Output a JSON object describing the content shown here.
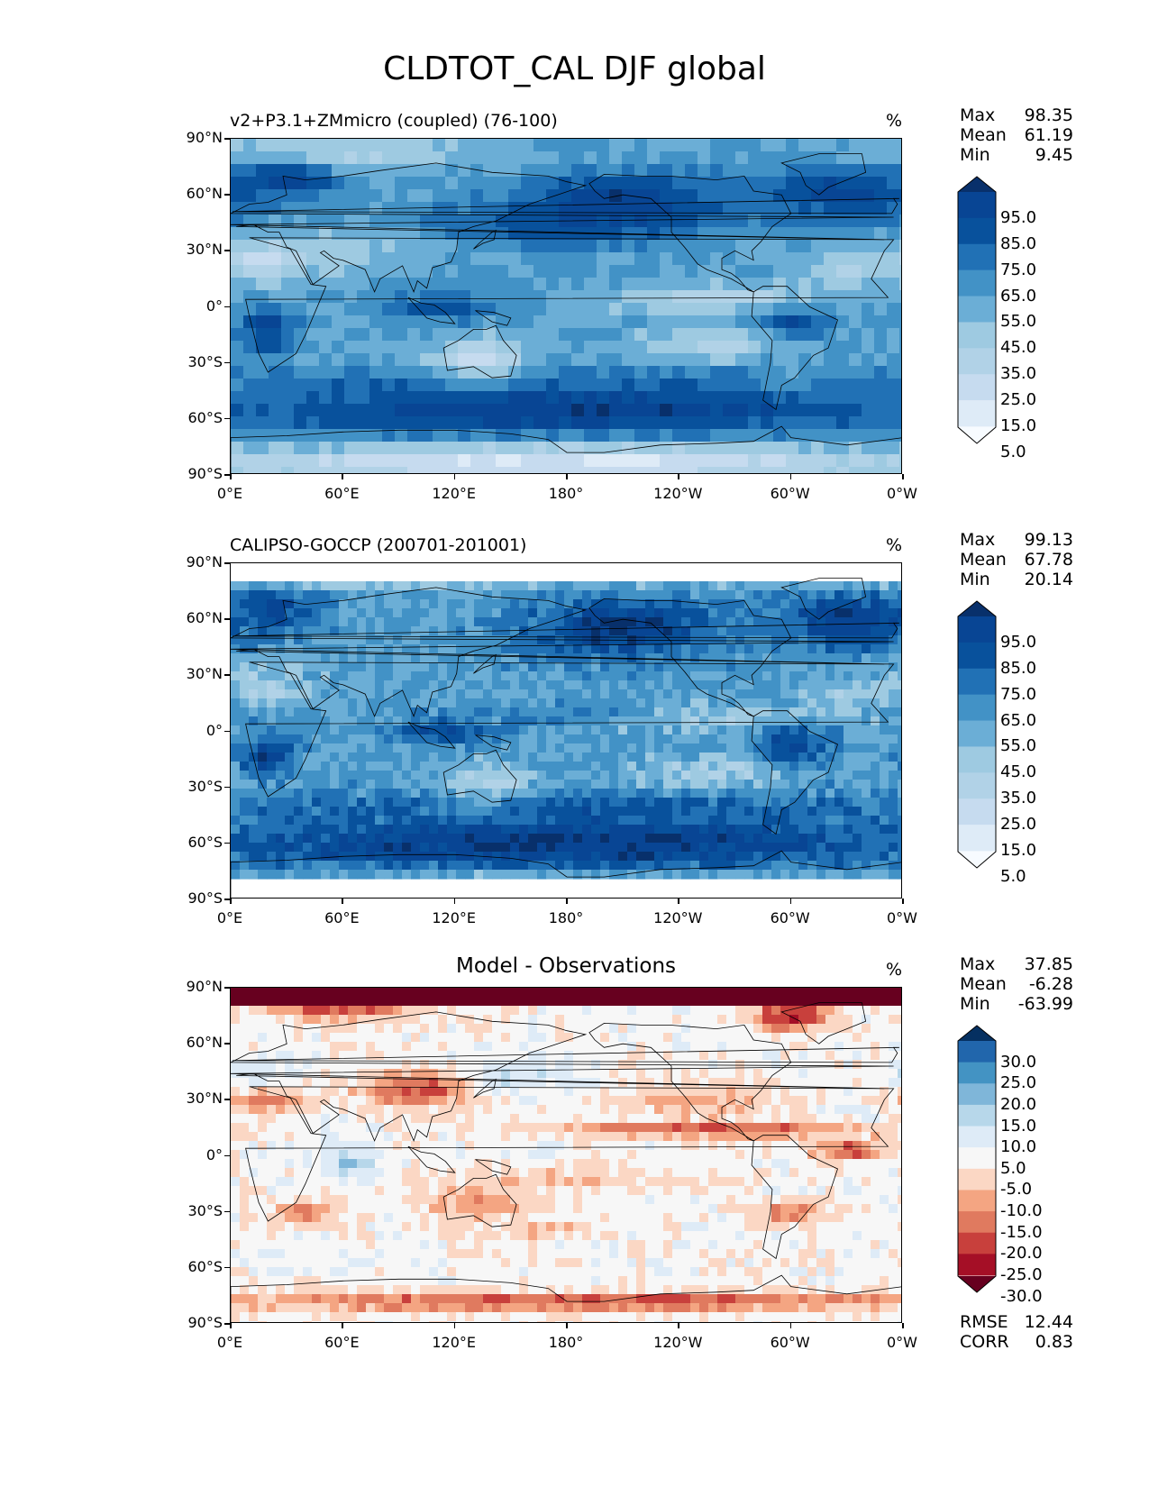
{
  "figure": {
    "title": "CLDTOT_CAL DJF global"
  },
  "panels": [
    {
      "id": "model",
      "title": "v2+P3.1+ZMmicro (coupled) (76-100)",
      "title_align": "left",
      "unit": "%",
      "stats": [
        {
          "label": "Max",
          "value": "98.35"
        },
        {
          "label": "Mean",
          "value": "61.19"
        },
        {
          "label": "Min",
          "value": "9.45"
        }
      ],
      "colorbar": {
        "colors": [
          "#f7fbff",
          "#deebf7",
          "#c6dbef",
          "#b1d2e7",
          "#9ecae1",
          "#6baed6",
          "#4292c6",
          "#2171b5",
          "#08519c",
          "#084594",
          "#08306b"
        ],
        "labels": [
          "95.0",
          "85.0",
          "75.0",
          "65.0",
          "55.0",
          "45.0",
          "35.0",
          "25.0",
          "15.0",
          "5.0"
        ]
      }
    },
    {
      "id": "obs",
      "title": "CALIPSO-GOCCP (200701-201001)",
      "title_align": "left",
      "unit": "%",
      "stats": [
        {
          "label": "Max",
          "value": "99.13"
        },
        {
          "label": "Mean",
          "value": "67.78"
        },
        {
          "label": "Min",
          "value": "20.14"
        }
      ],
      "colorbar": {
        "colors": [
          "#f7fbff",
          "#deebf7",
          "#c6dbef",
          "#b1d2e7",
          "#9ecae1",
          "#6baed6",
          "#4292c6",
          "#2171b5",
          "#08519c",
          "#084594",
          "#08306b"
        ],
        "labels": [
          "95.0",
          "85.0",
          "75.0",
          "65.0",
          "55.0",
          "45.0",
          "35.0",
          "25.0",
          "15.0",
          "5.0"
        ]
      }
    },
    {
      "id": "diff",
      "title": "Model - Observations",
      "title_align": "center",
      "unit": "%",
      "stats": [
        {
          "label": "Max",
          "value": "37.85"
        },
        {
          "label": "Mean",
          "value": "-6.28"
        },
        {
          "label": "Min",
          "value": "-63.99"
        }
      ],
      "colorbar": {
        "colors": [
          "#67001f",
          "#a50f26",
          "#c8403c",
          "#e07a5f",
          "#f4a582",
          "#fbd7c4",
          "#f7f7f7",
          "#deebf7",
          "#b7d7ea",
          "#7fb6d9",
          "#4393c3",
          "#2166ac",
          "#053061"
        ],
        "labels": [
          "30.0",
          "25.0",
          "20.0",
          "15.0",
          "10.0",
          "5.0",
          "-5.0",
          "-10.0",
          "-15.0",
          "-20.0",
          "-25.0",
          "-30.0"
        ]
      },
      "metrics": [
        {
          "label": "RMSE",
          "value": "12.44"
        },
        {
          "label": "CORR",
          "value": "0.83"
        }
      ]
    }
  ],
  "axes": {
    "y_ticks": [
      "90°N",
      "60°N",
      "30°N",
      "0°",
      "30°S",
      "60°S",
      "90°S"
    ],
    "x_ticks": [
      "0°E",
      "60°E",
      "120°E",
      "180°",
      "120°W",
      "60°W",
      "0°W"
    ]
  },
  "chart_data": {
    "type": "heatmap",
    "variable": "CLDTOT_CAL",
    "season": "DJF",
    "region": "global",
    "unit": "%",
    "x_range": [
      0,
      360
    ],
    "y_range": [
      -90,
      90
    ],
    "panels": [
      {
        "name": "v2+P3.1+ZMmicro (coupled) (76-100)",
        "max": 98.35,
        "mean": 61.19,
        "min": 9.45,
        "levels": [
          5,
          15,
          25,
          35,
          45,
          55,
          65,
          75,
          85,
          95
        ],
        "extend": "both"
      },
      {
        "name": "CALIPSO-GOCCP (200701-201001)",
        "max": 99.13,
        "mean": 67.78,
        "min": 20.14,
        "levels": [
          5,
          15,
          25,
          35,
          45,
          55,
          65,
          75,
          85,
          95
        ],
        "extend": "both"
      },
      {
        "name": "Model - Observations",
        "max": 37.85,
        "mean": -6.28,
        "min": -63.99,
        "levels": [
          -30,
          -25,
          -20,
          -15,
          -10,
          -5,
          5,
          10,
          15,
          20,
          25,
          30
        ],
        "extend": "both",
        "rmse": 12.44,
        "corr": 0.83
      }
    ]
  }
}
